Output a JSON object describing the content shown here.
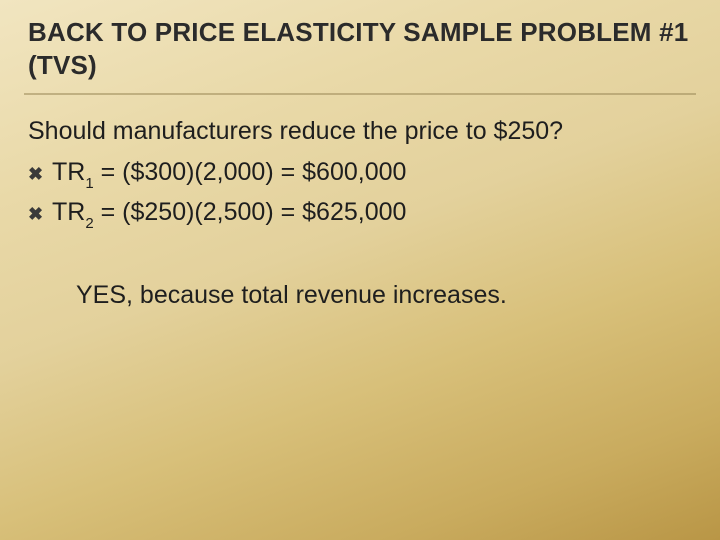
{
  "colors": {
    "background_gradient": [
      "#f1e5c0",
      "#e9d9a8",
      "#e3d19c",
      "#d8c07a",
      "#c9ab5e",
      "#b99646"
    ],
    "text": "#1e1e1e",
    "title_text": "#2b2b2b",
    "rule": "#9c8a5a"
  },
  "typography": {
    "family": "Trebuchet MS",
    "title_size_pt": 20,
    "body_size_pt": 19,
    "sub_size_pt": 11
  },
  "title": "BACK TO PRICE ELASTICITY SAMPLE PROBLEM #1 (TVS)",
  "question": "Should manufacturers reduce the price to $250?",
  "bullet_glyph": "✖",
  "lines": [
    {
      "label": "TR",
      "subscript": "1",
      "equation": " = ($300)(2,000) = $600,000"
    },
    {
      "label": "TR",
      "subscript": "2",
      "equation": " = ($250)(2,500) = $625,000"
    }
  ],
  "conclusion": "YES, because total revenue increases."
}
